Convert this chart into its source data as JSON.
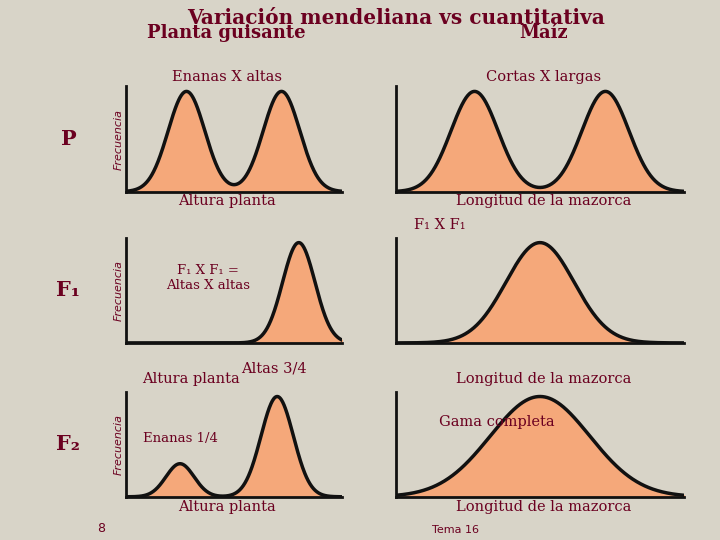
{
  "title_line1": "Variación mendeliana vs cuantitativa",
  "title_line2_left": "Planta guisante",
  "title_line2_right": "Maíz",
  "bg_color": "#d8d4c8",
  "fill_color": "#f5a87a",
  "line_color": "#111111",
  "text_color": "#6b0020",
  "axis_color": "#111111",
  "P_left_label": "Enanas X altas",
  "P_right_label": "Cortas X largas",
  "P_xlabel_left": "Altura planta",
  "P_xlabel_right": "Longitud de la mazorca",
  "F1_left_label": "F₁ X F₁ =\nAltas X altas",
  "F1_right_label": "F₁ X F₁",
  "F2_left_label_top": "Altura planta",
  "F2_left_label_mid": "Altas 3/4",
  "F2_left_label_bot": "Enanas 1/4",
  "F2_right_label_top": "Longitud de la mazorca",
  "F2_right_label_mid": "Gama completa",
  "F2_xlabel_left": "Altura planta",
  "F2_xlabel_right": "Longitud de la mazorca",
  "frecuencia_label": "Frecuencia",
  "row_labels": [
    "P",
    "F₁",
    "F₂"
  ],
  "bottom_left_label": "8",
  "bottom_right_text": "Tema 16"
}
